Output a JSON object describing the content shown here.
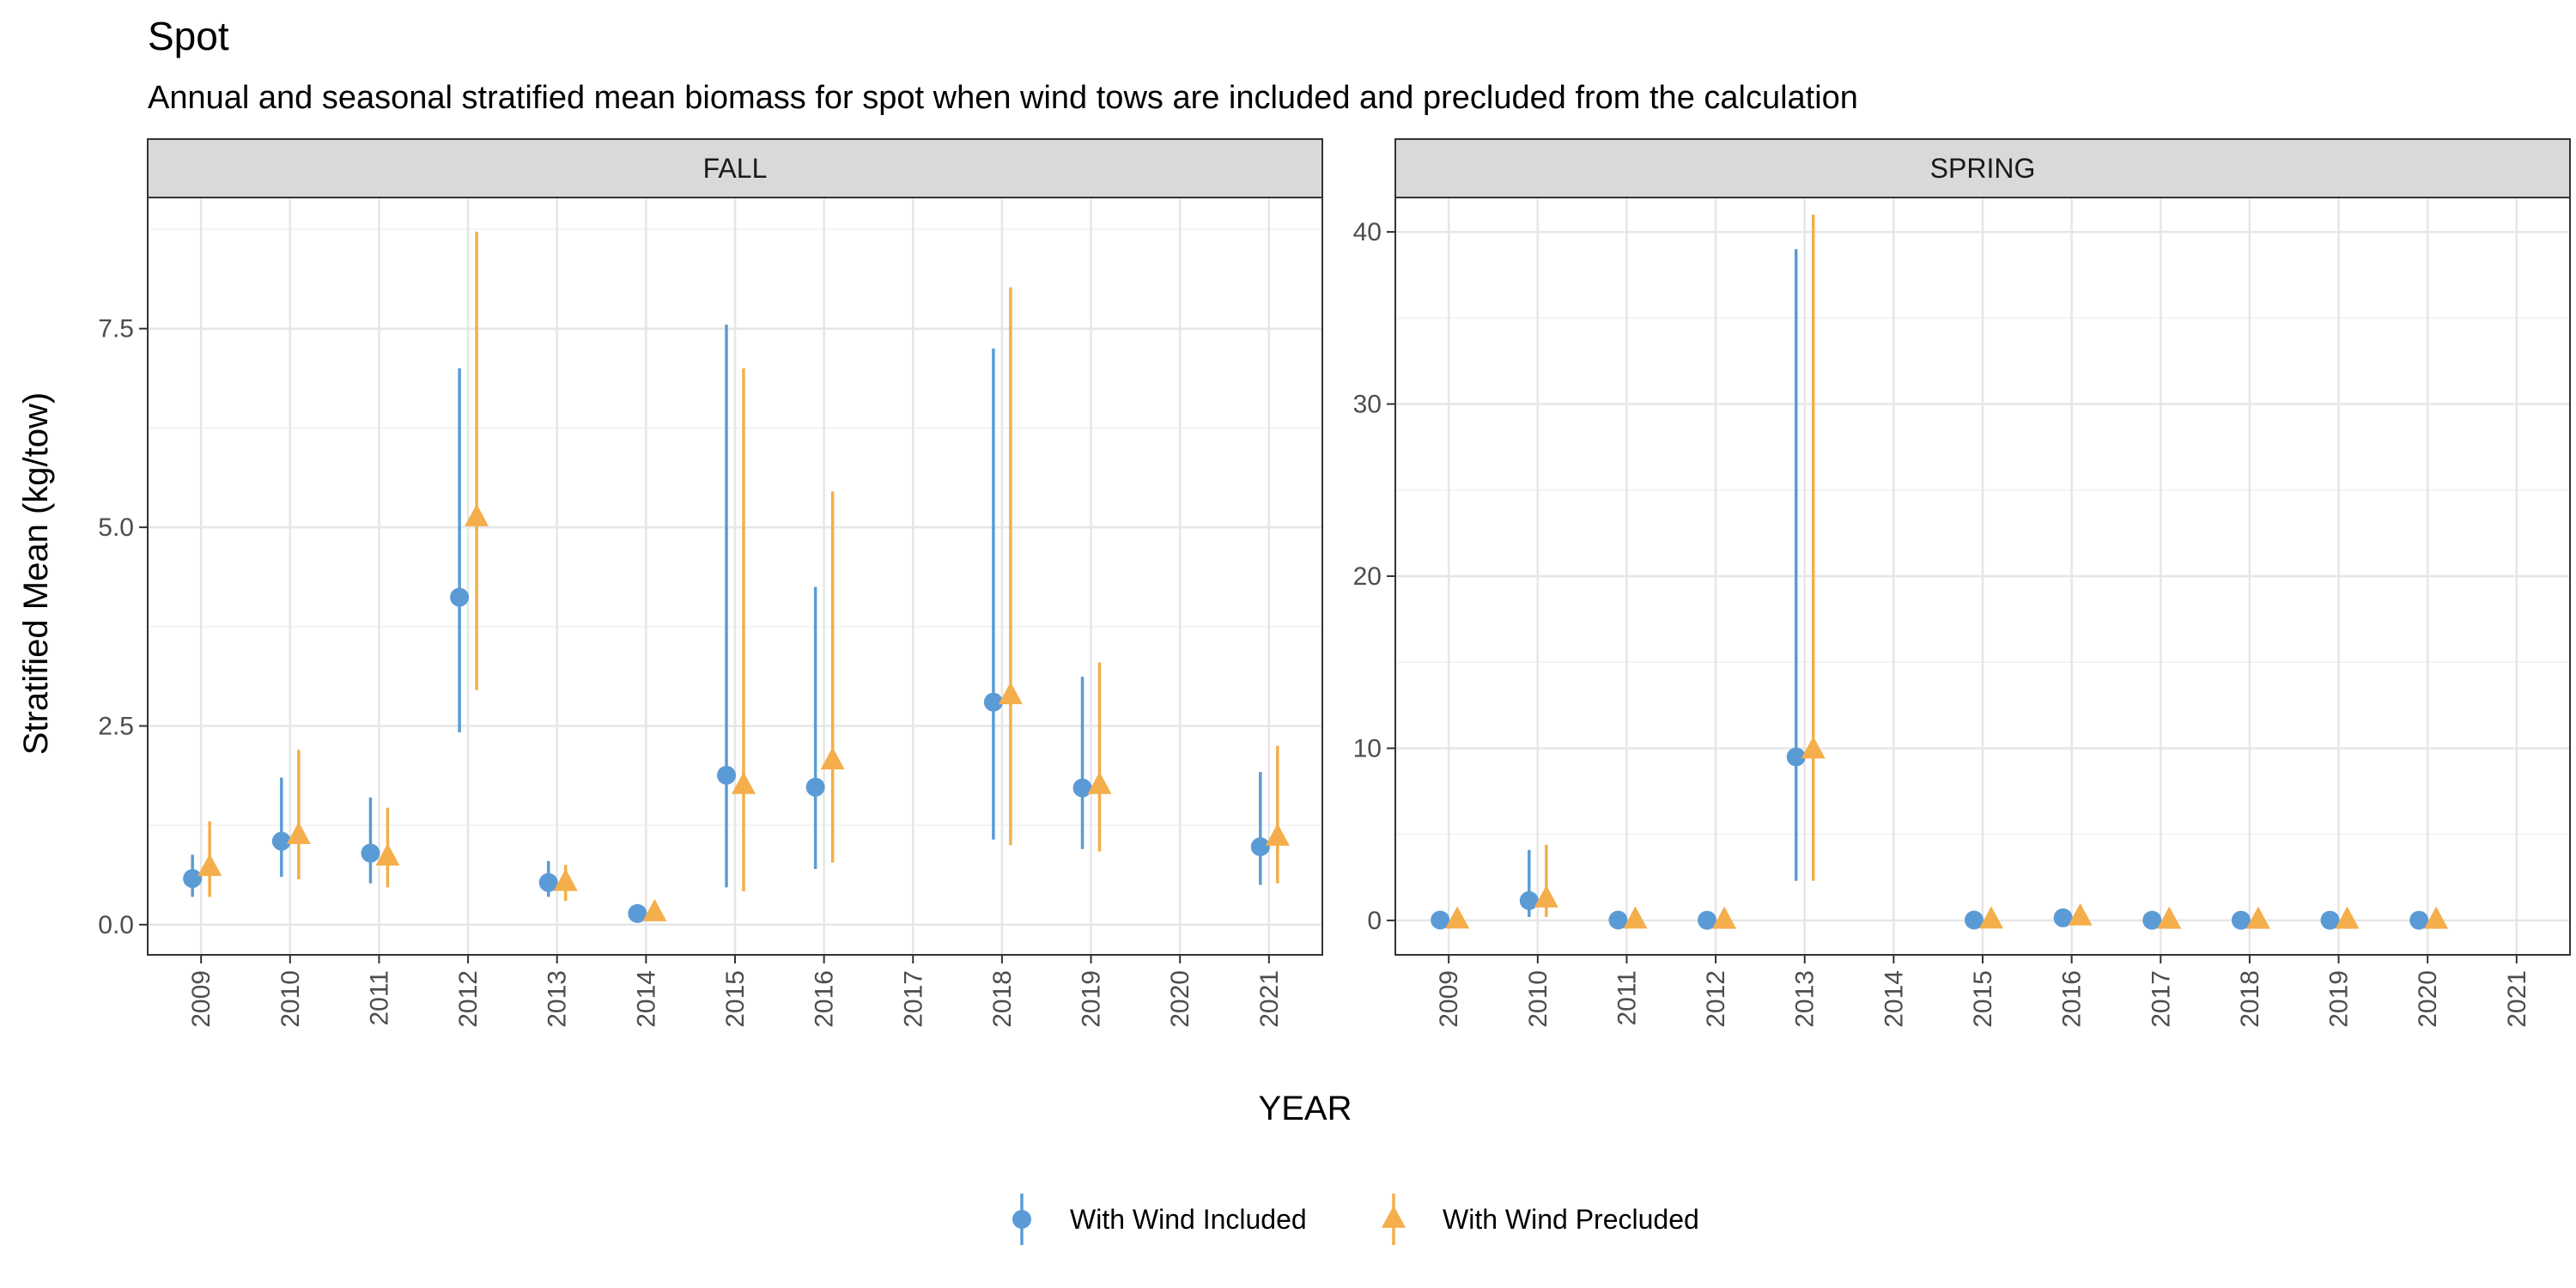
{
  "chart_data": {
    "type": "scatter",
    "title": "Spot",
    "subtitle": "Annual and seasonal stratified mean biomass for spot when wind tows are included and precluded from the calculation",
    "xlabel": "YEAR",
    "ylabel": "Stratified Mean (kg/tow)",
    "categories": [
      "2009",
      "2010",
      "2011",
      "2012",
      "2013",
      "2014",
      "2015",
      "2016",
      "2017",
      "2018",
      "2019",
      "2020",
      "2021"
    ],
    "legend": {
      "placement": "bottom",
      "entries": [
        {
          "name": "With Wind Included",
          "color": "#5B9BD5",
          "shape": "circle"
        },
        {
          "name": "With Wind Precluded",
          "color": "#F4AE4B",
          "shape": "triangle"
        }
      ]
    },
    "panels": [
      {
        "strip": "FALL",
        "ylim": [
          -0.38,
          9.15
        ],
        "yticks": [
          0,
          2.5,
          5,
          7.5
        ],
        "ytick_labels": [
          "0.0",
          "2.5",
          "5.0",
          "7.5"
        ],
        "series": [
          {
            "name": "With Wind Included",
            "points": [
              {
                "x": "2009",
                "y": 0.58,
                "lo": 0.35,
                "hi": 0.88
              },
              {
                "x": "2010",
                "y": 1.05,
                "lo": 0.6,
                "hi": 1.85
              },
              {
                "x": "2011",
                "y": 0.9,
                "lo": 0.52,
                "hi": 1.6
              },
              {
                "x": "2012",
                "y": 4.12,
                "lo": 2.42,
                "hi": 7.0
              },
              {
                "x": "2013",
                "y": 0.53,
                "lo": 0.35,
                "hi": 0.8
              },
              {
                "x": "2014",
                "y": 0.14,
                "lo": 0.1,
                "hi": 0.2
              },
              {
                "x": "2015",
                "y": 1.88,
                "lo": 0.47,
                "hi": 7.55
              },
              {
                "x": "2016",
                "y": 1.73,
                "lo": 0.7,
                "hi": 4.25
              },
              {
                "x": "2018",
                "y": 2.8,
                "lo": 1.07,
                "hi": 7.25
              },
              {
                "x": "2019",
                "y": 1.72,
                "lo": 0.95,
                "hi": 3.12
              },
              {
                "x": "2021",
                "y": 0.98,
                "lo": 0.5,
                "hi": 1.92
              }
            ]
          },
          {
            "name": "With Wind Precluded",
            "points": [
              {
                "x": "2009",
                "y": 0.72,
                "lo": 0.35,
                "hi": 1.3
              },
              {
                "x": "2010",
                "y": 1.12,
                "lo": 0.57,
                "hi": 2.2
              },
              {
                "x": "2011",
                "y": 0.85,
                "lo": 0.47,
                "hi": 1.47
              },
              {
                "x": "2012",
                "y": 5.12,
                "lo": 2.95,
                "hi": 8.72
              },
              {
                "x": "2013",
                "y": 0.53,
                "lo": 0.3,
                "hi": 0.75
              },
              {
                "x": "2014",
                "y": 0.15,
                "lo": 0.1,
                "hi": 0.22
              },
              {
                "x": "2015",
                "y": 1.75,
                "lo": 0.42,
                "hi": 7.0
              },
              {
                "x": "2016",
                "y": 2.06,
                "lo": 0.78,
                "hi": 5.45
              },
              {
                "x": "2018",
                "y": 2.88,
                "lo": 1.0,
                "hi": 8.02
              },
              {
                "x": "2019",
                "y": 1.75,
                "lo": 0.92,
                "hi": 3.3
              },
              {
                "x": "2021",
                "y": 1.1,
                "lo": 0.52,
                "hi": 2.25
              }
            ]
          }
        ]
      },
      {
        "strip": "SPRING",
        "ylim": [
          -2.0,
          42.0
        ],
        "yticks": [
          0,
          10,
          20,
          30,
          40
        ],
        "ytick_labels": [
          "0",
          "10",
          "20",
          "30",
          "40"
        ],
        "series": [
          {
            "name": "With Wind Included",
            "points": [
              {
                "x": "2009",
                "y": 0.02,
                "lo": 0.0,
                "hi": 0.05
              },
              {
                "x": "2010",
                "y": 1.15,
                "lo": 0.2,
                "hi": 4.1
              },
              {
                "x": "2011",
                "y": 0.02,
                "lo": 0.0,
                "hi": 0.05
              },
              {
                "x": "2012",
                "y": 0.01,
                "lo": 0.0,
                "hi": 0.03
              },
              {
                "x": "2013",
                "y": 9.5,
                "lo": 2.3,
                "hi": 39.0
              },
              {
                "x": "2015",
                "y": 0.02,
                "lo": 0.0,
                "hi": 0.05
              },
              {
                "x": "2016",
                "y": 0.15,
                "lo": 0.05,
                "hi": 0.3
              },
              {
                "x": "2017",
                "y": 0.01,
                "lo": 0.0,
                "hi": 0.03
              },
              {
                "x": "2018",
                "y": 0.01,
                "lo": 0.0,
                "hi": 0.03
              },
              {
                "x": "2019",
                "y": 0.01,
                "lo": 0.0,
                "hi": 0.03
              },
              {
                "x": "2020",
                "y": 0.01,
                "lo": 0.0,
                "hi": 0.03
              }
            ]
          },
          {
            "name": "With Wind Precluded",
            "points": [
              {
                "x": "2009",
                "y": 0.02,
                "lo": 0.0,
                "hi": 0.05
              },
              {
                "x": "2010",
                "y": 1.25,
                "lo": 0.2,
                "hi": 4.4
              },
              {
                "x": "2011",
                "y": 0.02,
                "lo": 0.0,
                "hi": 0.05
              },
              {
                "x": "2012",
                "y": 0.01,
                "lo": 0.0,
                "hi": 0.03
              },
              {
                "x": "2013",
                "y": 9.9,
                "lo": 2.3,
                "hi": 41.0
              },
              {
                "x": "2015",
                "y": 0.02,
                "lo": 0.0,
                "hi": 0.05
              },
              {
                "x": "2016",
                "y": 0.2,
                "lo": 0.05,
                "hi": 0.4
              },
              {
                "x": "2017",
                "y": 0.01,
                "lo": 0.0,
                "hi": 0.03
              },
              {
                "x": "2018",
                "y": 0.01,
                "lo": 0.0,
                "hi": 0.03
              },
              {
                "x": "2019",
                "y": 0.01,
                "lo": 0.0,
                "hi": 0.03
              },
              {
                "x": "2020",
                "y": 0.01,
                "lo": 0.0,
                "hi": 0.03
              }
            ]
          }
        ]
      }
    ],
    "grid": true
  }
}
